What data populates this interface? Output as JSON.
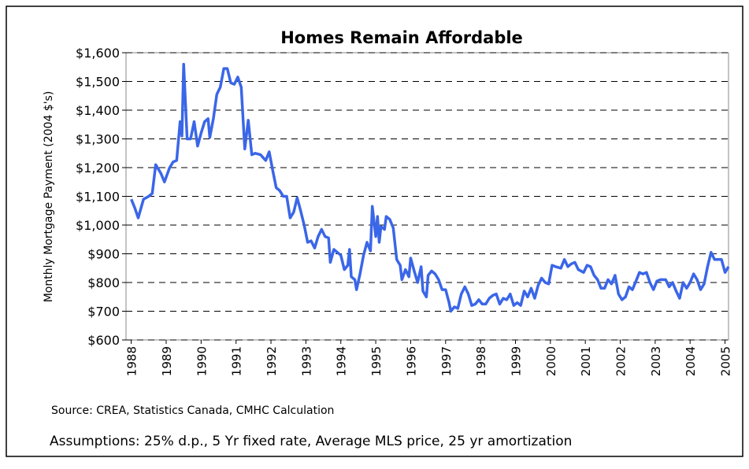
{
  "chart_data": {
    "type": "line",
    "title": "Homes Remain Affordable",
    "ylabel": "Monthly Mortgage Payment (2004 $'s)",
    "source": "Source: CREA, Statistics Canada, CMHC Calculation",
    "note": "Assumptions: 25% d.p., 5 Yr fixed rate, Average MLS price, 25 yr amortization",
    "color": "#3a66e8",
    "grid": true,
    "xlim": [
      1987.85,
      2005.1
    ],
    "xticks": [
      1988,
      1989,
      1990,
      1991,
      1992,
      1993,
      1994,
      1995,
      1996,
      1997,
      1998,
      1999,
      2000,
      2001,
      2002,
      2003,
      2004,
      2005
    ],
    "ylim": [
      600,
      1600
    ],
    "yticks": [
      {
        "value": 600,
        "label": "$600"
      },
      {
        "value": 700,
        "label": "$700"
      },
      {
        "value": 800,
        "label": "$800"
      },
      {
        "value": 900,
        "label": "$900"
      },
      {
        "value": 1000,
        "label": "$1,000"
      },
      {
        "value": 1100,
        "label": "$1,100"
      },
      {
        "value": 1200,
        "label": "$1,200"
      },
      {
        "value": 1300,
        "label": "$1,300"
      },
      {
        "value": 1400,
        "label": "$1,400"
      },
      {
        "value": 1500,
        "label": "$1,500"
      },
      {
        "value": 1600,
        "label": "$1,600"
      }
    ],
    "x": [
      1988.0,
      1988.1,
      1988.2,
      1988.35,
      1988.5,
      1988.6,
      1988.7,
      1988.85,
      1988.95,
      1989.1,
      1989.2,
      1989.3,
      1989.4,
      1989.45,
      1989.5,
      1989.6,
      1989.7,
      1989.8,
      1989.9,
      1990.0,
      1990.1,
      1990.2,
      1990.25,
      1990.35,
      1990.45,
      1990.55,
      1990.65,
      1990.75,
      1990.85,
      1990.95,
      1991.05,
      1991.15,
      1991.25,
      1991.35,
      1991.45,
      1991.55,
      1991.7,
      1991.85,
      1991.95,
      1992.05,
      1992.15,
      1992.25,
      1992.35,
      1992.45,
      1992.55,
      1992.65,
      1992.75,
      1992.85,
      1992.95,
      1993.05,
      1993.15,
      1993.25,
      1993.35,
      1993.45,
      1993.55,
      1993.65,
      1993.7,
      1993.8,
      1993.9,
      1994.0,
      1994.1,
      1994.2,
      1994.25,
      1994.3,
      1994.4,
      1994.45,
      1994.55,
      1994.65,
      1994.75,
      1994.85,
      1994.9,
      1995.0,
      1995.05,
      1995.1,
      1995.15,
      1995.25,
      1995.3,
      1995.4,
      1995.5,
      1995.6,
      1995.7,
      1995.75,
      1995.85,
      1995.95,
      1996.0,
      1996.1,
      1996.2,
      1996.3,
      1996.35,
      1996.45,
      1996.5,
      1996.6,
      1996.7,
      1996.8,
      1996.9,
      1997.0,
      1997.1,
      1997.15,
      1997.25,
      1997.35,
      1997.45,
      1997.55,
      1997.65,
      1997.75,
      1997.85,
      1997.95,
      1998.05,
      1998.15,
      1998.25,
      1998.35,
      1998.45,
      1998.55,
      1998.65,
      1998.75,
      1998.85,
      1998.95,
      1999.05,
      1999.15,
      1999.25,
      1999.35,
      1999.45,
      1999.55,
      1999.65,
      1999.75,
      1999.85,
      1999.95,
      2000.05,
      2000.15,
      2000.3,
      2000.4,
      2000.5,
      2000.6,
      2000.7,
      2000.8,
      2000.95,
      2001.05,
      2001.15,
      2001.25,
      2001.35,
      2001.45,
      2001.55,
      2001.65,
      2001.75,
      2001.85,
      2001.95,
      2002.05,
      2002.15,
      2002.25,
      2002.35,
      2002.45,
      2002.55,
      2002.65,
      2002.75,
      2002.85,
      2002.95,
      2003.05,
      2003.15,
      2003.3,
      2003.4,
      2003.5,
      2003.6,
      2003.7,
      2003.8,
      2003.9,
      2004.0,
      2004.1,
      2004.2,
      2004.3,
      2004.4,
      2004.5,
      2004.6,
      2004.7,
      2004.8,
      2004.9,
      2005.0,
      2005.1
    ],
    "values": [
      1090,
      1060,
      1025,
      1090,
      1100,
      1110,
      1210,
      1180,
      1150,
      1200,
      1220,
      1225,
      1360,
      1310,
      1560,
      1300,
      1300,
      1360,
      1275,
      1320,
      1360,
      1370,
      1305,
      1370,
      1455,
      1480,
      1545,
      1545,
      1495,
      1490,
      1515,
      1480,
      1265,
      1365,
      1245,
      1250,
      1245,
      1225,
      1255,
      1190,
      1130,
      1120,
      1100,
      1100,
      1025,
      1045,
      1095,
      1050,
      1000,
      940,
      945,
      920,
      960,
      985,
      960,
      955,
      870,
      915,
      905,
      895,
      845,
      860,
      915,
      820,
      810,
      775,
      830,
      895,
      940,
      910,
      1065,
      960,
      1030,
      940,
      995,
      985,
      1030,
      1020,
      990,
      880,
      860,
      810,
      845,
      820,
      885,
      840,
      800,
      855,
      770,
      750,
      825,
      840,
      830,
      810,
      775,
      775,
      730,
      700,
      715,
      710,
      760,
      785,
      760,
      720,
      725,
      740,
      725,
      725,
      745,
      755,
      760,
      725,
      745,
      740,
      760,
      720,
      730,
      720,
      770,
      750,
      780,
      745,
      790,
      815,
      800,
      795,
      860,
      855,
      850,
      880,
      855,
      865,
      870,
      845,
      835,
      860,
      855,
      825,
      810,
      780,
      780,
      810,
      795,
      825,
      760,
      740,
      750,
      785,
      775,
      805,
      835,
      830,
      835,
      800,
      775,
      805,
      810,
      810,
      785,
      800,
      770,
      745,
      800,
      780,
      800,
      830,
      810,
      775,
      795,
      855,
      905,
      880,
      880,
      880,
      835,
      855
    ]
  }
}
